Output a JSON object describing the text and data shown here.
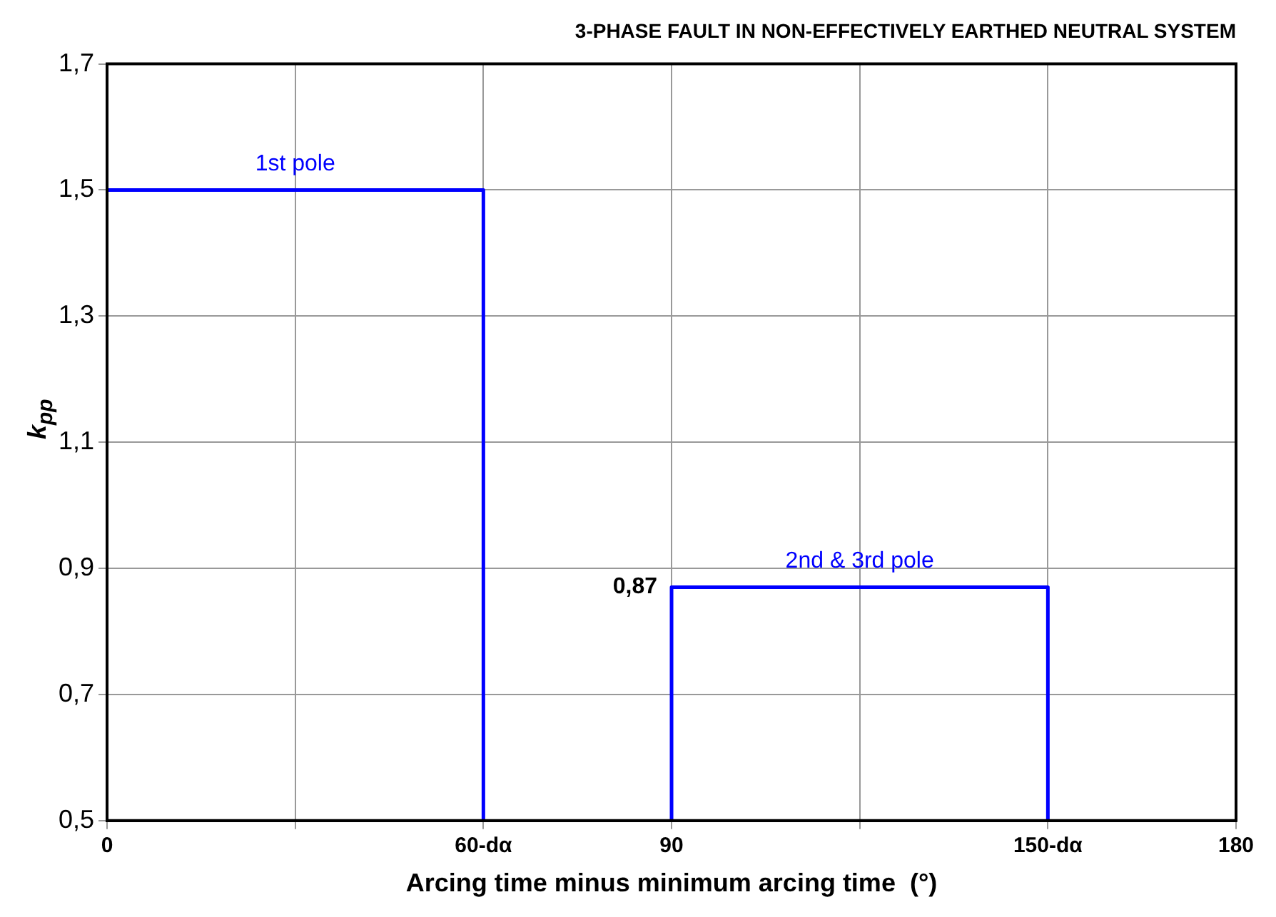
{
  "chart_data": {
    "type": "line",
    "title": "3-PHASE FAULT IN NON-EFFECTIVELY EARTHED NEUTRAL SYSTEM",
    "xlabel": "Arcing time minus minimum arcing time  (°)",
    "ylabel": "k$_{pp}$",
    "series": [
      {
        "name": "1st pole",
        "color": "#0000ff",
        "x": [
          0,
          60,
          60
        ],
        "values": [
          1.5,
          1.5,
          0.5
        ]
      },
      {
        "name": "2nd & 3rd pole",
        "color": "#0000ff",
        "x": [
          90,
          90,
          150,
          150
        ],
        "values": [
          0.5,
          0.87,
          0.87,
          0.5
        ]
      }
    ],
    "xlim": [
      0,
      180
    ],
    "xticks": [
      0,
      {
        "value": 30,
        "label": null
      },
      {
        "value": 60,
        "label": "60-dα"
      },
      90,
      {
        "value": 120,
        "label": null
      },
      {
        "value": 150,
        "label": "150-dα"
      },
      180
    ],
    "ylim": [
      0.5,
      1.7
    ],
    "yticks": [
      {
        "value": 0.5,
        "label": "0,5"
      },
      {
        "value": 0.7,
        "label": "0,7"
      },
      {
        "value": 0.9,
        "label": "0,9"
      },
      {
        "value": 1.1,
        "label": "1,1"
      },
      {
        "value": 1.3,
        "label": "1,3"
      },
      {
        "value": 1.5,
        "label": "1,5"
      },
      {
        "value": 1.7,
        "label": "1,7"
      }
    ],
    "annotations": [
      {
        "text": "0,87",
        "x": 90,
        "y": 0.87
      }
    ],
    "grid": true,
    "legend": false,
    "marker": "none",
    "line_style": "solid"
  }
}
